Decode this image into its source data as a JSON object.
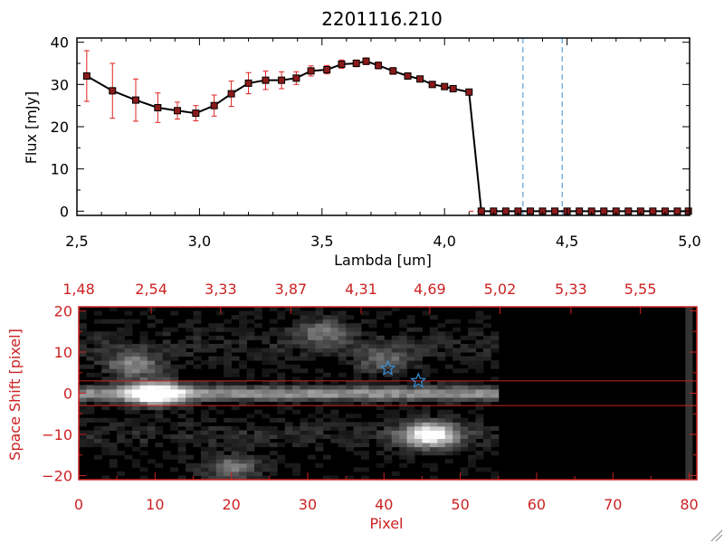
{
  "title": "2201116.210",
  "chart_data": [
    {
      "type": "line",
      "xlabel": "Lambda [um]",
      "ylabel": "Flux [mJy]",
      "xlim": [
        2.5,
        5.0
      ],
      "ylim": [
        -1,
        41
      ],
      "x_ticks": [
        2.5,
        3.0,
        3.5,
        4.0,
        4.5,
        5.0
      ],
      "x_tick_labels": [
        "2,5",
        "3,0",
        "3,5",
        "4,0",
        "4,5",
        "5,0"
      ],
      "y_ticks": [
        0,
        10,
        20,
        30,
        40
      ],
      "y_tick_labels": [
        "0",
        "10",
        "20",
        "30",
        "40"
      ],
      "grid": false,
      "colors": {
        "line": "#000000",
        "marker": "#8b1a1a",
        "errorbar": "#e02020",
        "vline": "#3b8fd4",
        "baseline": "#e02020"
      },
      "vlines": [
        4.32,
        4.48
      ],
      "series": [
        {
          "x": [
            2.54,
            2.645,
            2.74,
            2.83,
            2.91,
            2.985,
            3.06,
            3.13,
            3.2,
            3.27,
            3.335,
            3.395,
            3.455,
            3.52,
            3.58,
            3.64,
            3.68,
            3.73,
            3.79,
            3.85,
            3.9,
            3.95,
            4.0,
            4.035,
            4.1,
            4.15,
            4.2,
            4.25,
            4.3,
            4.35,
            4.4,
            4.45,
            4.5,
            4.55,
            4.6,
            4.65,
            4.7,
            4.75,
            4.8,
            4.85,
            4.9,
            4.95,
            4.995
          ],
          "y": [
            32,
            28.5,
            26.3,
            24.5,
            23.8,
            23.2,
            25,
            27.8,
            30.3,
            31,
            31,
            31.5,
            33.2,
            33.5,
            34.8,
            35,
            35.5,
            34.5,
            33.2,
            32,
            31.3,
            30,
            29.5,
            29,
            28.2,
            0,
            0,
            0,
            0,
            0,
            0,
            0,
            0,
            0,
            0,
            0,
            0,
            0,
            0,
            0,
            0,
            0,
            0
          ],
          "yerr": [
            6,
            6.5,
            5,
            3.5,
            2,
            1.8,
            2.5,
            3,
            2.5,
            2.2,
            2,
            1.5,
            1.2,
            1,
            1,
            0.8,
            0.8,
            0.8,
            0.8,
            0.6,
            0.6,
            0.6,
            0.6,
            0.6,
            0.6,
            0,
            0,
            0,
            0,
            0,
            0,
            0,
            0,
            0,
            0,
            0,
            0,
            0,
            0,
            0,
            0,
            0,
            0
          ]
        }
      ]
    },
    {
      "type": "heatmap",
      "xlabel": "Pixel",
      "ylabel": "Space Shift [pixel]",
      "xlim": [
        0,
        81
      ],
      "ylim": [
        -21,
        21
      ],
      "x_ticks": [
        0,
        10,
        20,
        30,
        40,
        50,
        60,
        70,
        80
      ],
      "x_tick_labels": [
        "0",
        "10",
        "20",
        "30",
        "40",
        "50",
        "60",
        "70",
        "80"
      ],
      "top_ticks": [
        0,
        9.5,
        18.6,
        27.8,
        37,
        46,
        55.2,
        64.5,
        73.6
      ],
      "top_tick_labels": [
        "1,48",
        "2,54",
        "3,33",
        "3,87",
        "4,31",
        "4,69",
        "5,02",
        "5,33",
        "5,55"
      ],
      "y_ticks": [
        -20,
        -10,
        0,
        10,
        20
      ],
      "y_tick_labels": [
        "−20",
        "−10",
        "0",
        "10",
        "20"
      ],
      "colors": {
        "axis": "#cc2222",
        "trace_line": "#cc2222",
        "star": "#3b8fd4",
        "background": "#000000"
      },
      "trace_lines": [
        3,
        -3
      ],
      "stars": [
        {
          "x": 40.5,
          "y": 6
        },
        {
          "x": 44.5,
          "y": 3
        }
      ],
      "data_extent_x": 55,
      "sources": [
        {
          "x": 10,
          "y": 0,
          "intensity": 1.0
        },
        {
          "x": 46,
          "y": -10,
          "intensity": 1.0
        },
        {
          "x": 7,
          "y": 7,
          "intensity": 0.5
        },
        {
          "x": 20,
          "y": -18,
          "intensity": 0.45
        },
        {
          "x": 32,
          "y": 15,
          "intensity": 0.4
        },
        {
          "x": 40,
          "y": 8,
          "intensity": 0.35
        }
      ]
    }
  ]
}
